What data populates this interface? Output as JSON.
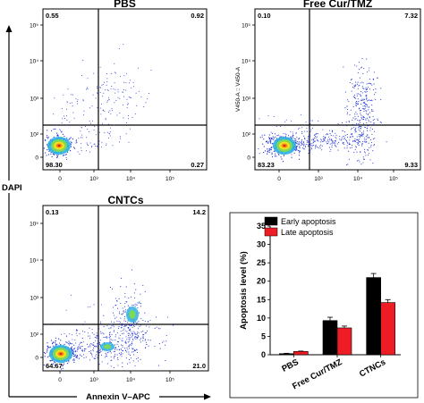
{
  "colors": {
    "early": "#000000",
    "late": "#ee1c25",
    "dots": "#1a2dd6"
  },
  "flow": {
    "x_axis_title": "Annexin V–APC",
    "y_axis_title": "DAPI",
    "y_axis_inner_label": "V450-A :: V450-A",
    "ticks": [
      "0",
      "10²",
      "10³",
      "10⁴",
      "10⁵"
    ],
    "panels": [
      {
        "title": "PBS",
        "quadrants": {
          "ul": "0.55",
          "ur": "0.92",
          "ll": "98.30",
          "lr": "0.27"
        }
      },
      {
        "title": "Free Cur/TMZ",
        "quadrants": {
          "ul": "0.10",
          "ur": "7.32",
          "ll": "83.23",
          "lr": "9.33"
        }
      },
      {
        "title": "CNTCs",
        "quadrants": {
          "ul": "0.13",
          "ur": "14.2",
          "ll": "64.67",
          "lr": "21.0"
        }
      }
    ]
  },
  "chart_data": {
    "type": "bar",
    "title": "",
    "categories": [
      "PBS",
      "Free Cur/TMZ",
      "CTNCs"
    ],
    "series": [
      {
        "name": "Early apoptosis",
        "values": [
          0.3,
          9.3,
          21.0
        ],
        "errors": [
          0.1,
          0.9,
          1.1
        ]
      },
      {
        "name": "Late apoptosis",
        "values": [
          0.9,
          7.3,
          14.2
        ],
        "errors": [
          0.1,
          0.5,
          0.8
        ]
      }
    ],
    "xlabel": "",
    "ylabel": "Apoptosis level (%)",
    "ylim": [
      0,
      35
    ],
    "yticks": [
      0,
      5,
      10,
      15,
      20,
      25,
      30,
      35
    ],
    "legend": "top-left",
    "grid": false
  }
}
